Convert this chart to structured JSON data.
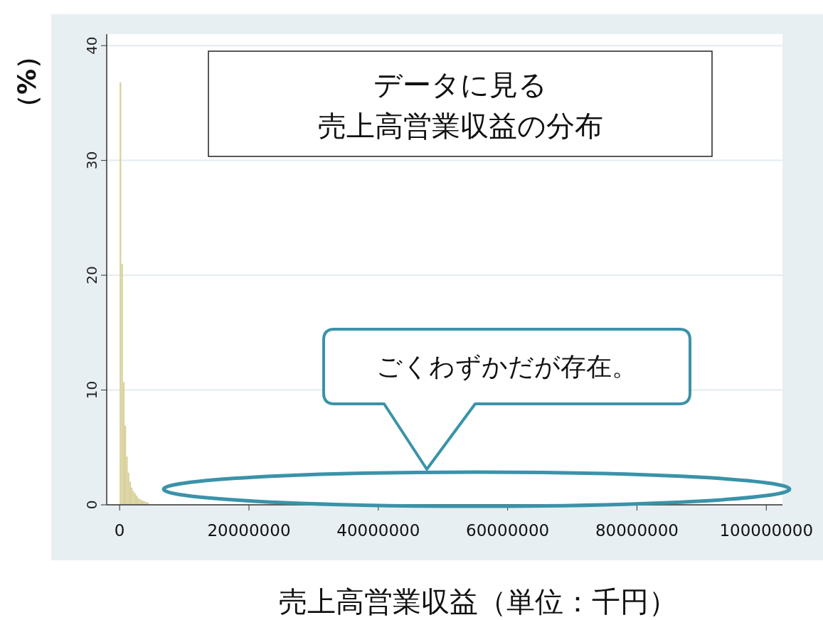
{
  "chart_data": {
    "type": "histogram",
    "title": "データに見る",
    "subtitle": "売上高営業収益の分布",
    "xlabel": "売上高営業収益（単位：千円）",
    "ylabel": "（%）",
    "annotations": [
      "ごくわずかだが存在。"
    ],
    "bins": [
      0,
      250000,
      500000,
      750000,
      1000000,
      1250000,
      1500000,
      1750000,
      2000000,
      2250000,
      2500000,
      2750000,
      3000000,
      3250000,
      3500000,
      3750000,
      4000000,
      4250000,
      4500000
    ],
    "values": [
      36.8,
      21.0,
      10.7,
      6.9,
      4.2,
      2.8,
      2.0,
      1.5,
      1.2,
      1.0,
      0.8,
      0.6,
      0.5,
      0.4,
      0.35,
      0.3,
      0.25,
      0.2
    ],
    "color": "#d8d29c",
    "xlim": [
      -2000000,
      102500000
    ],
    "xticks": [
      0,
      20000000,
      40000000,
      60000000,
      80000000,
      100000000
    ],
    "ylim": [
      0,
      41
    ],
    "yticks": [
      0,
      10,
      20,
      30,
      40
    ],
    "grid": "y"
  }
}
